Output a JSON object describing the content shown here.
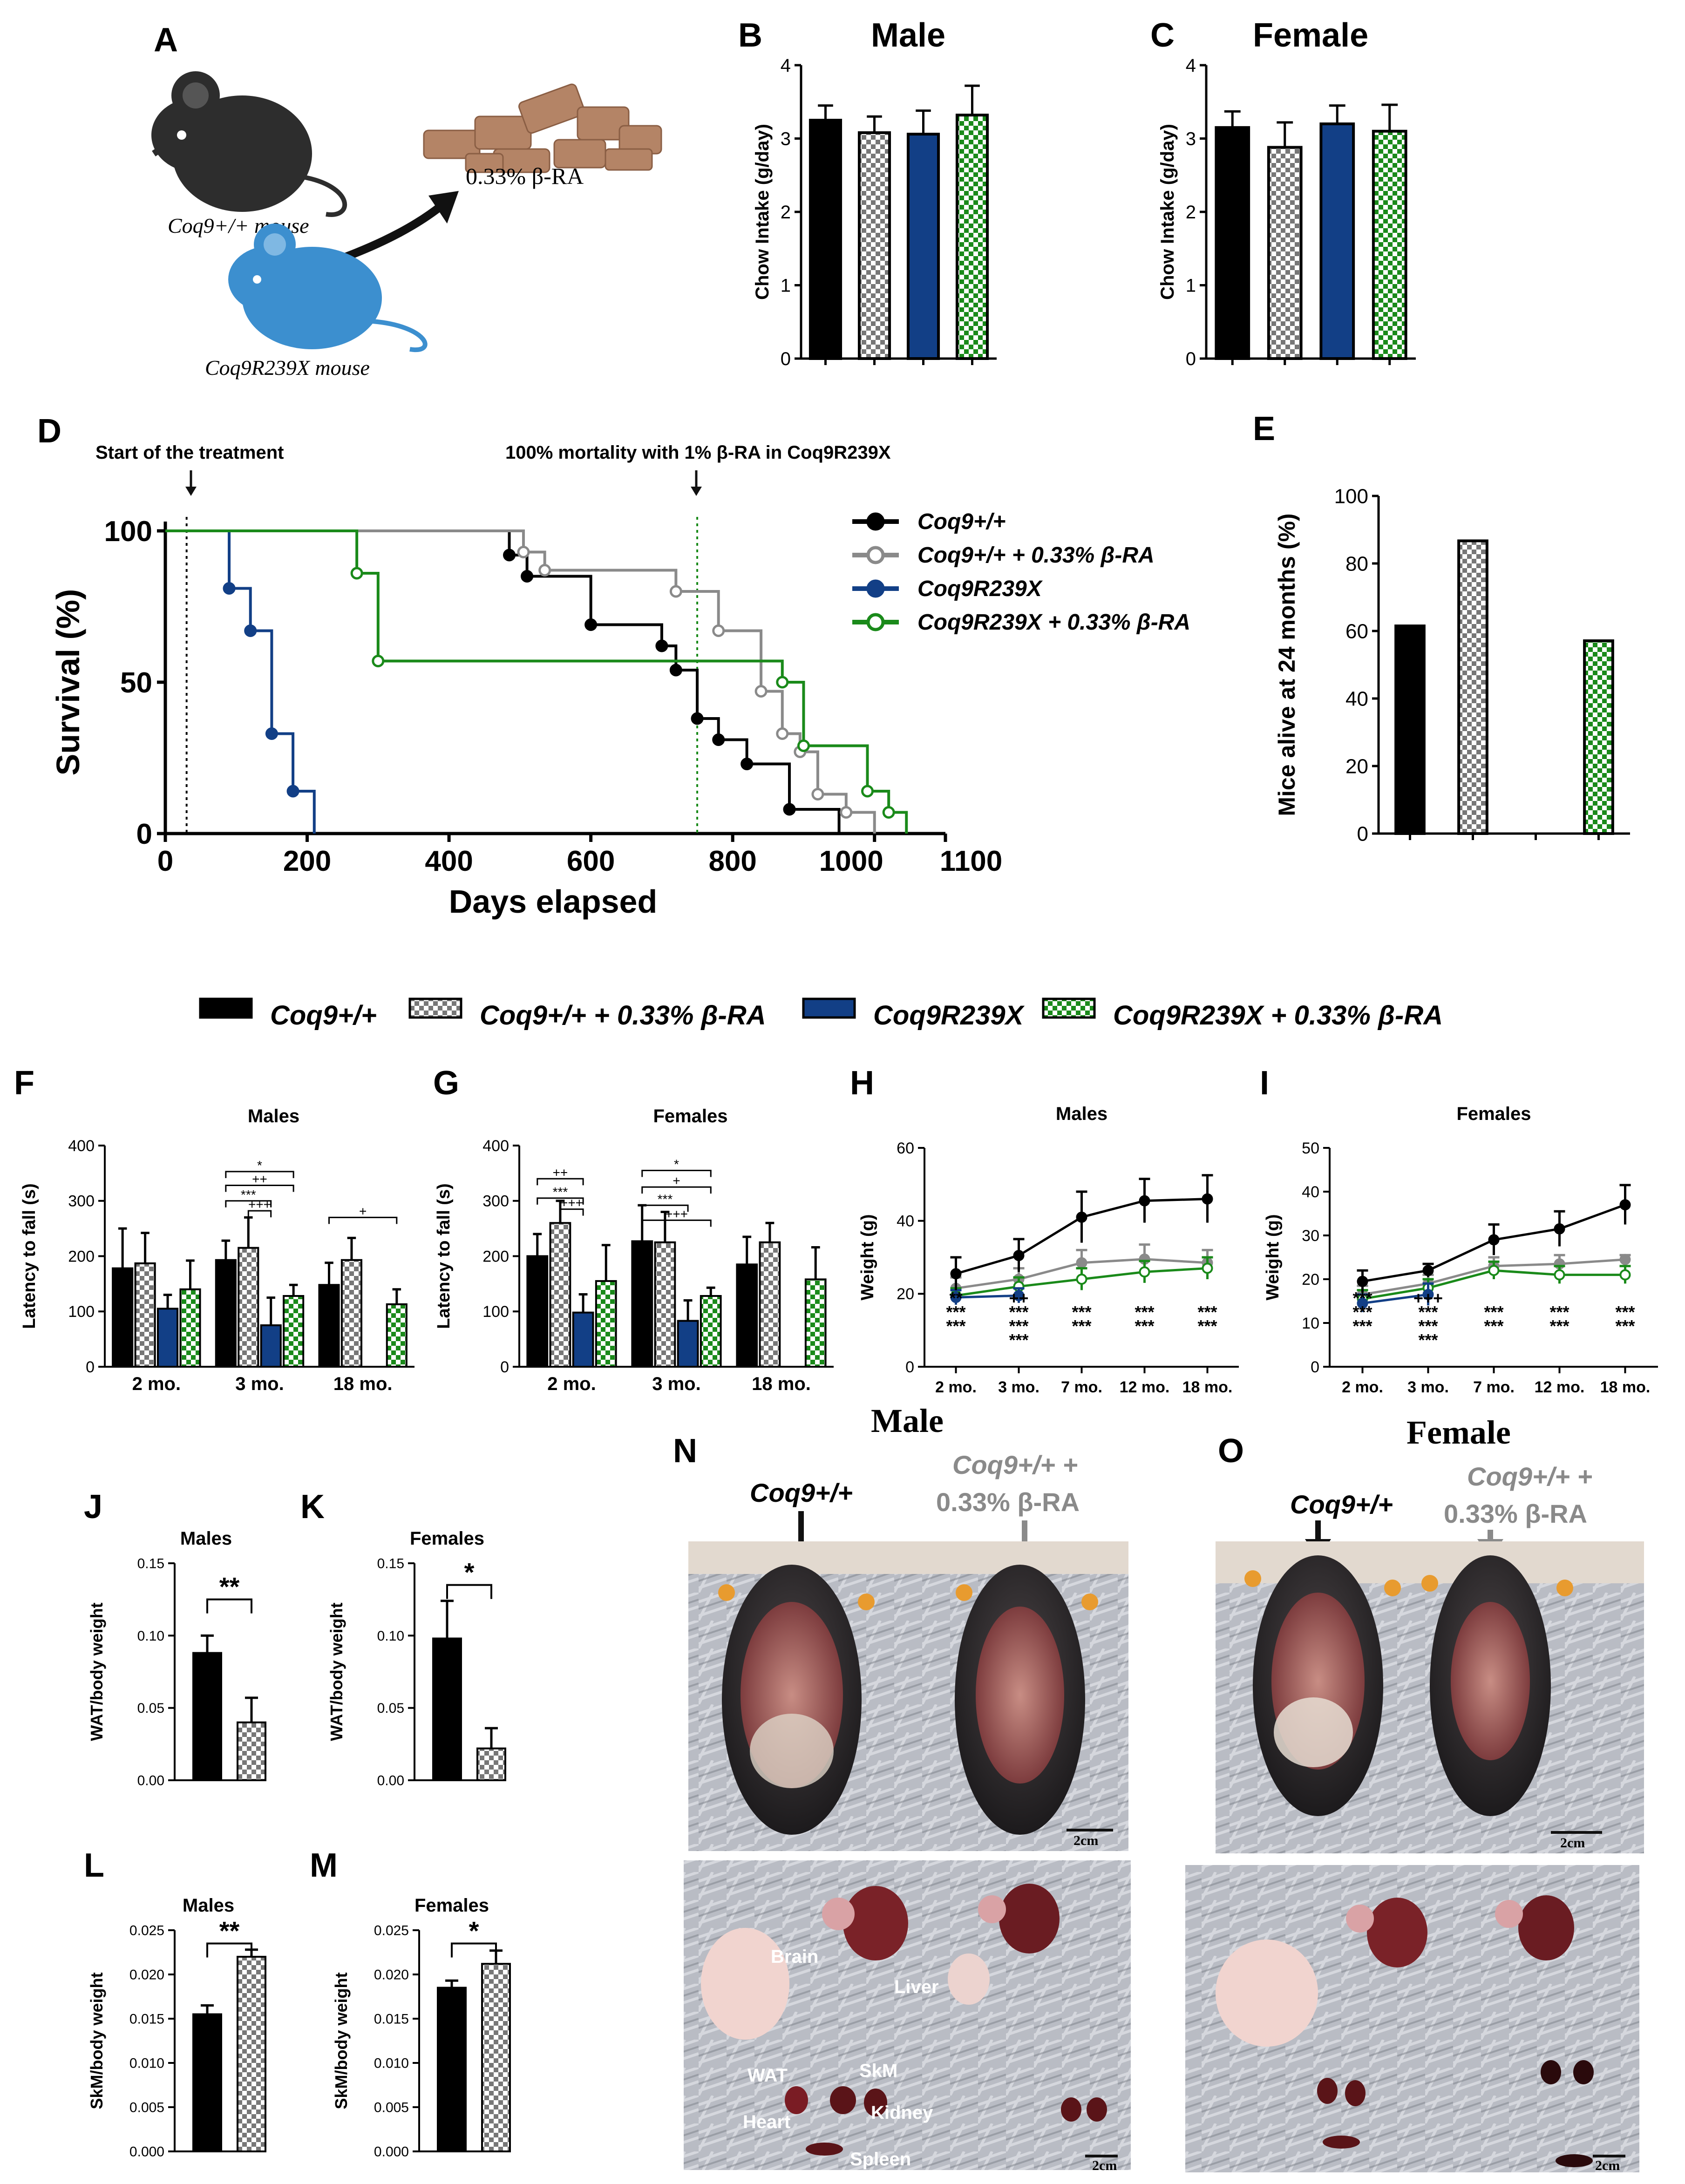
{
  "colors": {
    "wt": "#000000",
    "wt_ra": "#8a8a8a",
    "mut": "#123f86",
    "mut_ra": "#1a8a1a",
    "mouse_blue": "#3c8fcf",
    "chow": "#b48466"
  },
  "panels": {
    "A": {
      "letter": "A",
      "ra_label": "0.33% β-RA",
      "wt_mouse": "Coq9+/+ mouse",
      "mut_mouse": "Coq9R239X mouse"
    },
    "B": {
      "letter": "B",
      "title": "Male"
    },
    "C": {
      "letter": "C",
      "title": "Female"
    },
    "D": {
      "letter": "D",
      "start_note": "Start of the treatment",
      "mortality_note": "100% mortality with 1% β-RA in Coq9R239X"
    },
    "E": {
      "letter": "E"
    },
    "F": {
      "letter": "F",
      "title": "Males"
    },
    "G": {
      "letter": "G",
      "title": "Females"
    },
    "H": {
      "letter": "H",
      "title": "Males"
    },
    "I": {
      "letter": "I",
      "title": "Females"
    },
    "J": {
      "letter": "J",
      "title": "Males",
      "sig": "**"
    },
    "K": {
      "letter": "K",
      "title": "Females",
      "sig": "*"
    },
    "L": {
      "letter": "L",
      "title": "Males",
      "sig": "**"
    },
    "M": {
      "letter": "M",
      "title": "Females",
      "sig": "*"
    },
    "N": {
      "letter": "N",
      "title": "Male",
      "wt": "Coq9+/+",
      "wt_ra": "Coq9+/+ +",
      "wt_ra2": "0.33% β-RA",
      "scale": "2cm",
      "organs": [
        "Brain",
        "Liver",
        "WAT",
        "SkM",
        "Heart",
        "Kidney",
        "Spleen"
      ]
    },
    "O": {
      "letter": "O",
      "title": "Female",
      "wt": "Coq9+/+",
      "wt_ra": "Coq9+/+ +",
      "wt_ra2": "0.33% β-RA",
      "scale": "2cm"
    }
  },
  "legend": {
    "groups": [
      "Coq9+/+",
      "Coq9+/+ + 0.33% β-RA",
      "Coq9R239X",
      "Coq9R239X + 0.33% β-RA"
    ]
  },
  "chart_data": [
    {
      "id": "B",
      "type": "bar",
      "title": "Male",
      "ylabel": "Chow Intake (g/day)",
      "ylim": [
        0,
        4
      ],
      "yticks": [
        0,
        1,
        2,
        3,
        4
      ],
      "categories": [
        "Coq9+/+",
        "Coq9+/+ + 0.33% β-RA",
        "Coq9R239X",
        "Coq9R239X + 0.33% β-RA"
      ],
      "values": [
        3.25,
        3.08,
        3.06,
        3.32
      ],
      "errors": [
        0.2,
        0.22,
        0.32,
        0.4
      ]
    },
    {
      "id": "C",
      "type": "bar",
      "title": "Female",
      "ylabel": "Chow Intake (g/day)",
      "ylim": [
        0,
        4
      ],
      "yticks": [
        0,
        1,
        2,
        3,
        4
      ],
      "categories": [
        "Coq9+/+",
        "Coq9+/+ + 0.33% β-RA",
        "Coq9R239X",
        "Coq9R239X + 0.33% β-RA"
      ],
      "values": [
        3.15,
        2.88,
        3.2,
        3.1
      ],
      "errors": [
        0.22,
        0.34,
        0.25,
        0.36
      ]
    },
    {
      "id": "D",
      "type": "line",
      "xlabel": "Days elapsed",
      "ylabel": "Survival (%)",
      "xlim": [
        0,
        1100
      ],
      "ylim": [
        0,
        100
      ],
      "xticks": [
        "0",
        "200",
        "400",
        "600",
        "800",
        "1000",
        "1100"
      ],
      "yticks": [
        "0",
        "50",
        "100"
      ],
      "series": [
        {
          "name": "Coq9+/+",
          "x": [
            0,
            485,
            510,
            600,
            700,
            720,
            750,
            780,
            820,
            880,
            950
          ],
          "y": [
            100,
            92,
            85,
            69,
            62,
            54,
            38,
            31,
            23,
            8,
            0
          ]
        },
        {
          "name": "Coq9+/+ + 0.33% β-RA",
          "x": [
            0,
            505,
            535,
            720,
            780,
            840,
            870,
            895,
            920,
            960,
            1000
          ],
          "y": [
            100,
            93,
            87,
            80,
            67,
            47,
            33,
            27,
            13,
            7,
            0
          ]
        },
        {
          "name": "Coq9R239X",
          "x": [
            0,
            90,
            120,
            150,
            180,
            210
          ],
          "y": [
            100,
            81,
            67,
            33,
            14,
            0
          ]
        },
        {
          "name": "Coq9R239X + 0.33% β-RA",
          "x": [
            0,
            270,
            300,
            870,
            900,
            990,
            1020,
            1045
          ],
          "y": [
            100,
            86,
            57,
            50,
            29,
            14,
            7,
            0
          ]
        }
      ],
      "vlines": [
        30,
        750
      ]
    },
    {
      "id": "E",
      "type": "bar",
      "ylabel": "Mice alive at 24 months (%)",
      "ylim": [
        0,
        100
      ],
      "yticks": [
        0,
        20,
        40,
        60,
        80,
        100
      ],
      "categories": [
        "Coq9+/+",
        "Coq9+/+ + 0.33% β-RA",
        "Coq9R239X",
        "Coq9R239X + 0.33% β-RA"
      ],
      "values": [
        61.5,
        86.7,
        0,
        57.1
      ]
    },
    {
      "id": "F",
      "type": "bar",
      "title": "Males",
      "ylabel": "Latency to fall (s)",
      "ylim": [
        0,
        400
      ],
      "yticks": [
        0,
        100,
        200,
        300,
        400
      ],
      "categories": [
        "2 mo.",
        "3 mo.",
        "18 mo."
      ],
      "series": [
        {
          "name": "Coq9+/+",
          "values": [
            178,
            193,
            148
          ],
          "errors": [
            72,
            35,
            40
          ]
        },
        {
          "name": "Coq9+/+ + 0.33% β-RA",
          "values": [
            187,
            215,
            193
          ],
          "errors": [
            55,
            55,
            40
          ]
        },
        {
          "name": "Coq9R239X",
          "values": [
            105,
            75,
            0
          ],
          "errors": [
            25,
            50,
            0
          ]
        },
        {
          "name": "Coq9R239X + 0.33% β-RA",
          "values": [
            140,
            128,
            113
          ],
          "errors": [
            52,
            20,
            27
          ]
        }
      ]
    },
    {
      "id": "G",
      "type": "bar",
      "title": "Females",
      "ylabel": "Latency to fall (s)",
      "ylim": [
        0,
        400
      ],
      "yticks": [
        0,
        100,
        200,
        300,
        400
      ],
      "categories": [
        "2 mo.",
        "3 mo.",
        "18 mo."
      ],
      "series": [
        {
          "name": "Coq9+/+",
          "values": [
            200,
            227,
            185
          ],
          "errors": [
            40,
            65,
            50
          ]
        },
        {
          "name": "Coq9+/+ + 0.33% β-RA",
          "values": [
            260,
            225,
            225
          ],
          "errors": [
            40,
            55,
            35
          ]
        },
        {
          "name": "Coq9R239X",
          "values": [
            98,
            83,
            0
          ],
          "errors": [
            33,
            37,
            0
          ]
        },
        {
          "name": "Coq9R239X + 0.33% β-RA",
          "values": [
            155,
            128,
            158
          ],
          "errors": [
            65,
            15,
            58
          ]
        }
      ]
    },
    {
      "id": "H",
      "type": "line",
      "title": "Males",
      "ylabel": "Weight (g)",
      "ylim": [
        0,
        60
      ],
      "yticks": [
        0,
        20,
        40,
        60
      ],
      "categories": [
        "2 mo.",
        "3 mo.",
        "7 mo.",
        "12 mo.",
        "18 mo."
      ],
      "series": [
        {
          "name": "Coq9+/+",
          "values": [
            25.5,
            30.5,
            41,
            45.5,
            46
          ],
          "errors": [
            4.5,
            4.5,
            7,
            6,
            6.5
          ]
        },
        {
          "name": "Coq9+/+ + 0.33% β-RA",
          "values": [
            21.5,
            24,
            28.5,
            29.5,
            28.5
          ],
          "errors": [
            3,
            3,
            3.5,
            4,
            3.5
          ]
        },
        {
          "name": "Coq9R239X",
          "values": [
            19,
            19.5,
            null,
            null,
            null
          ],
          "errors": [
            2,
            2,
            0,
            0,
            0
          ]
        },
        {
          "name": "Coq9R239X + 0.33% β-RA",
          "values": [
            19.5,
            22,
            24,
            26,
            27
          ],
          "errors": [
            2,
            2.5,
            3,
            3,
            3
          ]
        }
      ],
      "annotations": [
        [
          "**",
          "***",
          "***"
        ],
        [
          "++",
          "***",
          "***",
          "***"
        ],
        [
          "***",
          "***"
        ],
        [
          "***",
          "***"
        ],
        [
          "***",
          "***"
        ]
      ]
    },
    {
      "id": "I",
      "type": "line",
      "title": "Females",
      "ylabel": "Weight (g)",
      "ylim": [
        0,
        50
      ],
      "yticks": [
        0,
        10,
        20,
        30,
        40,
        50
      ],
      "categories": [
        "2 mo.",
        "3 mo.",
        "7 mo.",
        "12 mo.",
        "18 mo."
      ],
      "series": [
        {
          "name": "Coq9+/+",
          "values": [
            19.5,
            22,
            29,
            31.5,
            37
          ],
          "errors": [
            2.5,
            1.5,
            3.5,
            4,
            4.5
          ]
        },
        {
          "name": "Coq9+/+ + 0.33% β-RA",
          "values": [
            16.5,
            19,
            23,
            23.5,
            24.5
          ],
          "errors": [
            2,
            2,
            2,
            2,
            1
          ]
        },
        {
          "name": "Coq9R239X",
          "values": [
            14.5,
            16.5,
            null,
            null,
            null
          ],
          "errors": [
            2,
            2.5,
            0,
            0,
            0
          ]
        },
        {
          "name": "Coq9R239X + 0.33% β-RA",
          "values": [
            15.5,
            18,
            22,
            21,
            21
          ],
          "errors": [
            2,
            2,
            2,
            2,
            2
          ]
        }
      ],
      "annotations": [
        [
          "***",
          "***",
          "***"
        ],
        [
          "+++",
          "***",
          "***",
          "***"
        ],
        [
          "***",
          "***"
        ],
        [
          "***",
          "***"
        ],
        [
          "***",
          "***"
        ]
      ]
    },
    {
      "id": "J",
      "type": "bar",
      "title": "Males",
      "ylabel": "WAT/body weight",
      "ylim": [
        0,
        0.15
      ],
      "yticks": [
        "0.00",
        "0.05",
        "0.10",
        "0.15"
      ],
      "categories": [
        "Coq9+/+",
        "Coq9+/+ + 0.33% β-RA"
      ],
      "values": [
        0.088,
        0.04
      ],
      "errors": [
        0.012,
        0.017
      ]
    },
    {
      "id": "K",
      "type": "bar",
      "title": "Females",
      "ylabel": "WAT/body weight",
      "ylim": [
        0,
        0.15
      ],
      "yticks": [
        "0.00",
        "0.05",
        "0.10",
        "0.15"
      ],
      "categories": [
        "Coq9+/+",
        "Coq9+/+ + 0.33% β-RA"
      ],
      "values": [
        0.098,
        0.022
      ],
      "errors": [
        0.026,
        0.014
      ]
    },
    {
      "id": "L",
      "type": "bar",
      "title": "Males",
      "ylabel": "SkM/body weight",
      "ylim": [
        0,
        0.025
      ],
      "yticks": [
        "0.000",
        "0.005",
        "0.010",
        "0.015",
        "0.020",
        "0.025"
      ],
      "categories": [
        "Coq9+/+",
        "Coq9+/+ + 0.33% β-RA"
      ],
      "values": [
        0.0155,
        0.022
      ],
      "errors": [
        0.001,
        0.0008
      ]
    },
    {
      "id": "M",
      "type": "bar",
      "title": "Females",
      "ylabel": "SkM/body weight",
      "ylim": [
        0,
        0.025
      ],
      "yticks": [
        "0.000",
        "0.005",
        "0.010",
        "0.015",
        "0.020",
        "0.025"
      ],
      "categories": [
        "Coq9+/+",
        "Coq9+/+ + 0.33% β-RA"
      ],
      "values": [
        0.0185,
        0.0212
      ],
      "errors": [
        0.0008,
        0.0015
      ]
    }
  ]
}
